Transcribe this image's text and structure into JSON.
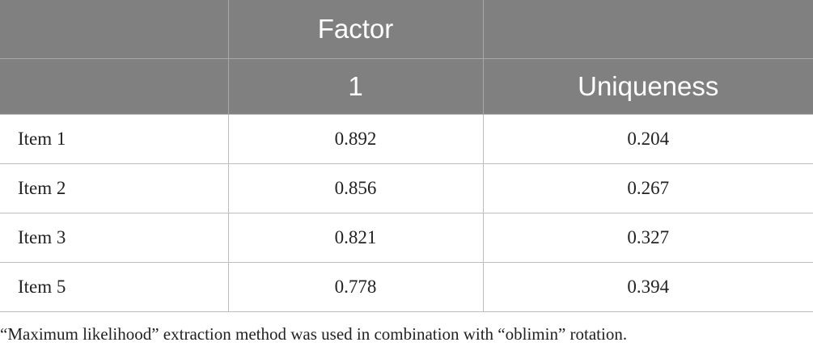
{
  "header": {
    "group_label": "Factor",
    "factor_label": "1",
    "uniqueness_label": "Uniqueness"
  },
  "rows": [
    {
      "item": "Item 1",
      "factor": "0.892",
      "uniqueness": "0.204"
    },
    {
      "item": "Item 2",
      "factor": "0.856",
      "uniqueness": "0.267"
    },
    {
      "item": "Item 3",
      "factor": "0.821",
      "uniqueness": "0.327"
    },
    {
      "item": "Item 5",
      "factor": "0.778",
      "uniqueness": "0.394"
    }
  ],
  "note": "“Maximum likelihood” extraction method was used in combination with “oblimin” rotation."
}
